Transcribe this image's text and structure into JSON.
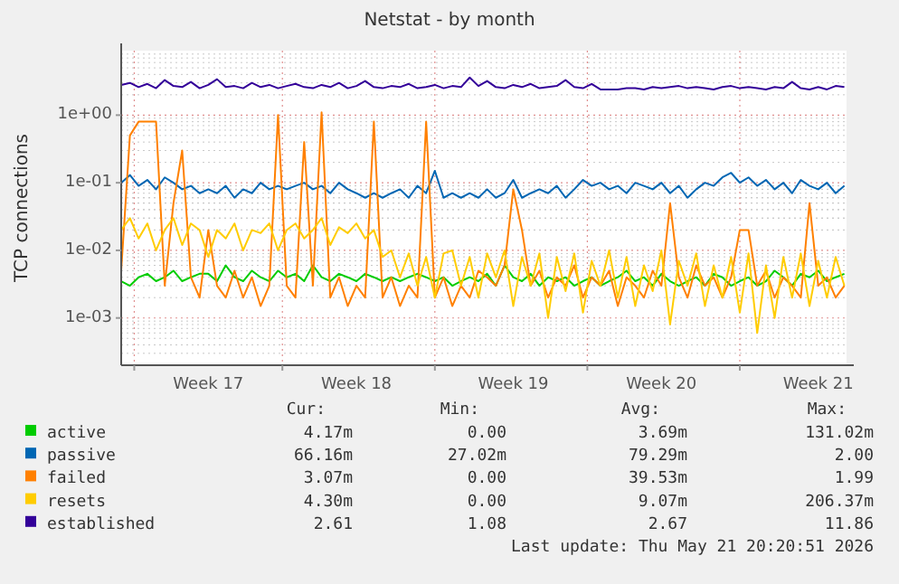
{
  "chart_data": {
    "type": "line",
    "title": "Netstat - by month",
    "ylabel": "TCP connections",
    "log": true,
    "grid": true,
    "legend": "bottom",
    "categories": [
      null,
      null,
      null,
      null,
      null,
      null,
      null,
      null,
      null,
      null,
      "Week 17",
      null,
      null,
      null,
      null,
      null,
      null,
      null,
      null,
      null,
      null,
      null,
      null,
      null,
      null,
      null,
      null,
      "Week 18",
      null,
      null,
      null,
      null,
      null,
      null,
      null,
      null,
      null,
      null,
      null,
      null,
      null,
      null,
      null,
      null,
      null,
      "Week 19",
      null,
      null,
      null,
      null,
      null,
      null,
      null,
      null,
      null,
      null,
      null,
      null,
      null,
      null,
      null,
      null,
      "Week 20",
      null,
      null,
      null,
      null,
      null,
      null,
      null,
      null,
      null,
      null,
      null,
      null,
      null,
      null,
      null,
      null,
      null,
      "Week 21",
      null,
      null,
      null
    ],
    "ylim": [
      0.0002,
      9
    ],
    "yticks": [
      {
        "value": 0.001,
        "label": "1e-03"
      },
      {
        "value": 0.01,
        "label": "1e-02"
      },
      {
        "value": 0.1,
        "label": "1e-01"
      },
      {
        "value": 1,
        "label": "1e+00"
      }
    ],
    "series": [
      {
        "name": "active",
        "color": "#00cc00",
        "values": [
          0.0035,
          0.003,
          0.004,
          0.0045,
          0.0035,
          0.004,
          0.005,
          0.0035,
          0.004,
          0.0045,
          0.0045,
          0.0035,
          0.006,
          0.004,
          0.0035,
          0.005,
          0.004,
          0.0035,
          0.005,
          0.004,
          0.0045,
          0.0035,
          0.006,
          0.004,
          0.0035,
          0.0045,
          0.004,
          0.0035,
          0.0045,
          0.004,
          0.0035,
          0.004,
          0.0035,
          0.004,
          0.0045,
          0.004,
          0.0035,
          0.004,
          0.003,
          0.0035,
          0.004,
          0.0035,
          0.0045,
          0.003,
          0.006,
          0.004,
          0.0035,
          0.0045,
          0.003,
          0.004,
          0.0035,
          0.004,
          0.003,
          0.0035,
          0.004,
          0.003,
          0.0035,
          0.004,
          0.005,
          0.0035,
          0.004,
          0.003,
          0.0045,
          0.0035,
          0.003,
          0.0035,
          0.004,
          0.003,
          0.0045,
          0.004,
          0.003,
          0.0035,
          0.004,
          0.003,
          0.0035,
          0.005,
          0.004,
          0.003,
          0.0045,
          0.004,
          0.005,
          0.0035,
          0.004,
          0.0045
        ]
      },
      {
        "name": "passive",
        "color": "#0066b3",
        "values": [
          0.1,
          0.13,
          0.09,
          0.11,
          0.08,
          0.12,
          0.1,
          0.08,
          0.09,
          0.07,
          0.08,
          0.07,
          0.09,
          0.06,
          0.08,
          0.07,
          0.1,
          0.08,
          0.09,
          0.08,
          0.09,
          0.1,
          0.08,
          0.09,
          0.07,
          0.1,
          0.08,
          0.07,
          0.06,
          0.07,
          0.06,
          0.07,
          0.08,
          0.06,
          0.09,
          0.07,
          0.15,
          0.06,
          0.07,
          0.06,
          0.07,
          0.06,
          0.08,
          0.06,
          0.07,
          0.11,
          0.06,
          0.07,
          0.08,
          0.07,
          0.09,
          0.06,
          0.08,
          0.11,
          0.09,
          0.1,
          0.08,
          0.09,
          0.07,
          0.1,
          0.09,
          0.08,
          0.1,
          0.07,
          0.09,
          0.06,
          0.08,
          0.1,
          0.09,
          0.12,
          0.14,
          0.1,
          0.12,
          0.09,
          0.11,
          0.08,
          0.1,
          0.07,
          0.11,
          0.09,
          0.08,
          0.1,
          0.07,
          0.09
        ]
      },
      {
        "name": "failed",
        "color": "#ff8000",
        "values": [
          0.005,
          0.5,
          0.8,
          0.8,
          0.8,
          0.003,
          0.05,
          0.3,
          0.004,
          0.002,
          0.02,
          0.003,
          0.002,
          0.005,
          0.002,
          0.004,
          0.0015,
          0.003,
          1.0,
          0.003,
          0.002,
          0.4,
          0.003,
          1.1,
          0.002,
          0.004,
          0.0015,
          0.003,
          0.002,
          0.8,
          0.002,
          0.004,
          0.0015,
          0.003,
          0.002,
          0.8,
          0.002,
          0.004,
          0.0015,
          0.003,
          0.002,
          0.005,
          0.004,
          0.003,
          0.006,
          0.08,
          0.02,
          0.003,
          0.005,
          0.002,
          0.004,
          0.003,
          0.006,
          0.002,
          0.004,
          0.003,
          0.005,
          0.0015,
          0.004,
          0.003,
          0.002,
          0.005,
          0.003,
          0.05,
          0.004,
          0.002,
          0.006,
          0.003,
          0.004,
          0.002,
          0.004,
          0.02,
          0.02,
          0.003,
          0.005,
          0.002,
          0.004,
          0.003,
          0.002,
          0.05,
          0.003,
          0.004,
          0.002,
          0.003
        ]
      },
      {
        "name": "resets",
        "color": "#ffcc00",
        "values": [
          0.02,
          0.03,
          0.015,
          0.025,
          0.01,
          0.02,
          0.03,
          0.012,
          0.025,
          0.02,
          0.008,
          0.02,
          0.015,
          0.025,
          0.01,
          0.02,
          0.018,
          0.025,
          0.01,
          0.02,
          0.025,
          0.015,
          0.02,
          0.03,
          0.012,
          0.022,
          0.018,
          0.025,
          0.015,
          0.02,
          0.008,
          0.01,
          0.004,
          0.009,
          0.003,
          0.008,
          0.002,
          0.009,
          0.01,
          0.003,
          0.008,
          0.002,
          0.009,
          0.004,
          0.01,
          0.0015,
          0.008,
          0.003,
          0.009,
          0.001,
          0.008,
          0.0025,
          0.009,
          0.0012,
          0.007,
          0.003,
          0.01,
          0.002,
          0.008,
          0.0015,
          0.006,
          0.0025,
          0.01,
          0.0008,
          0.007,
          0.003,
          0.009,
          0.0015,
          0.006,
          0.002,
          0.008,
          0.0012,
          0.009,
          0.0006,
          0.006,
          0.001,
          0.008,
          0.002,
          0.009,
          0.0015,
          0.007,
          0.002,
          0.008,
          0.003
        ]
      },
      {
        "name": "established",
        "color": "#330099",
        "values": [
          2.8,
          3.0,
          2.6,
          2.9,
          2.5,
          3.3,
          2.7,
          2.6,
          3.1,
          2.5,
          2.8,
          3.4,
          2.6,
          2.7,
          2.5,
          3.0,
          2.6,
          2.8,
          2.5,
          2.7,
          2.9,
          2.6,
          2.5,
          2.8,
          2.6,
          3.0,
          2.5,
          2.7,
          3.2,
          2.6,
          2.5,
          2.7,
          2.6,
          2.9,
          2.5,
          2.6,
          2.8,
          2.5,
          2.7,
          2.6,
          3.6,
          2.7,
          3.2,
          2.6,
          2.5,
          2.8,
          2.6,
          2.9,
          2.5,
          2.6,
          2.7,
          3.3,
          2.6,
          2.5,
          2.9,
          2.4,
          2.4,
          2.4,
          2.5,
          2.5,
          2.4,
          2.6,
          2.5,
          2.6,
          2.7,
          2.5,
          2.6,
          2.5,
          2.4,
          2.6,
          2.7,
          2.5,
          2.6,
          2.5,
          2.4,
          2.6,
          2.5,
          3.1,
          2.5,
          2.4,
          2.6,
          2.4,
          2.7,
          2.6
        ]
      }
    ],
    "annotations": [
      "Cur:",
      "Min:",
      "Avg:",
      "Max:",
      "4.17m",
      "0.00",
      "3.69m",
      "131.02m",
      "66.16m",
      "27.02m",
      "79.29m",
      "2.00",
      "3.07m",
      "0.00",
      "39.53m",
      "1.99",
      "4.30m",
      "0.00",
      "9.07m",
      "206.37m",
      "2.61",
      "1.08",
      "2.67",
      "11.86",
      "Last update: Thu May 21 20:20:51 2026"
    ]
  }
}
